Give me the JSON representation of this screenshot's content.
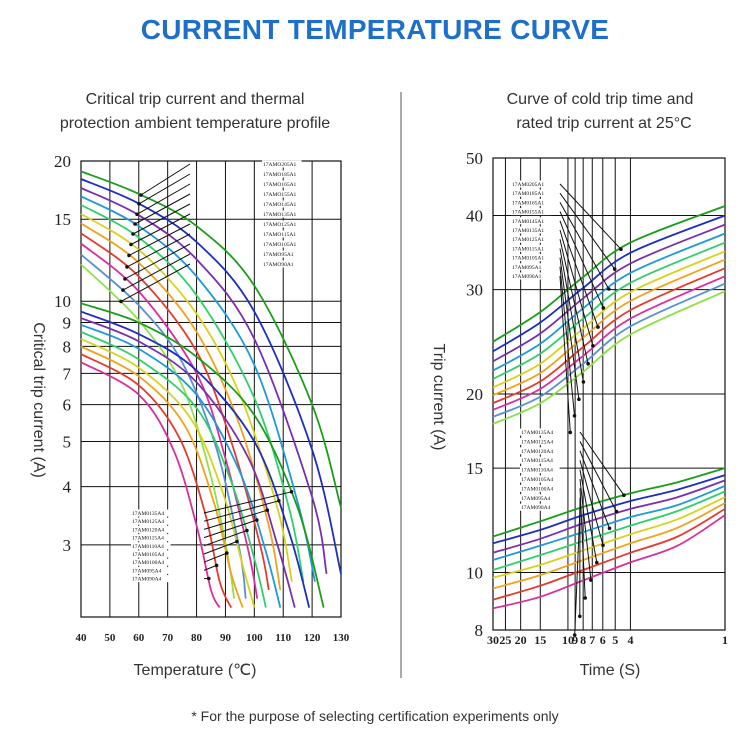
{
  "title": "CURRENT TEMPERATURE CURVE",
  "footnote": "* For the purpose of selecting certification experiments only",
  "colors": {
    "title": "#1e6fc9",
    "series": [
      "#1a9e1a",
      "#1d2ec4",
      "#7a2fb0",
      "#1f9ad6",
      "#2fcf6b",
      "#d8d21a",
      "#f0a21b",
      "#e63a2e",
      "#d92f9b",
      "#5a8fd6",
      "#8fe04a"
    ]
  },
  "chart_data": [
    {
      "type": "line",
      "title": "Critical trip current and thermal protection ambient temperature profile",
      "title_lines": [
        "Critical trip current and thermal",
        "protection ambient temperature profile"
      ],
      "xlabel": "Temperature (℃)",
      "ylabel": "Critical trip current (A)",
      "xscale": "linear",
      "yscale": "log",
      "xlim": [
        40,
        130
      ],
      "ylim": [
        2.1,
        20
      ],
      "x_ticks": [
        "40",
        "50",
        "60",
        "70",
        "80",
        "90",
        "100",
        "110",
        "120",
        "130"
      ],
      "y_ticks": [
        "3",
        "4",
        "5",
        "6",
        "7",
        "8",
        "9",
        "10",
        "15",
        "20"
      ],
      "grid": true,
      "upper_legend": [
        "17AMO205A1",
        "17AMO185A1",
        "17AMO165A1",
        "17AMO155A1",
        "17AMO145A1",
        "17AMO135A1",
        "17AMO125A1",
        "17AMO115A1",
        "17AMO105A1",
        "17AMO95A1",
        "17AMO90A1"
      ],
      "lower_legend": [
        "17AM0135A4",
        "17AM0125A4",
        "17AM0120A4",
        "17AM0115A4",
        "17AM0110A4",
        "17AM0105A4",
        "17AM0100A4",
        "17AM095A4",
        "17AM090A4"
      ],
      "upper_series": [
        {
          "name": "17AMO205A1",
          "x": [
            40,
            60,
            80,
            100,
            120,
            130
          ],
          "y": [
            19.0,
            17.0,
            14.5,
            10.8,
            6.0,
            3.6
          ]
        },
        {
          "name": "17AMO185A1",
          "x": [
            40,
            60,
            80,
            100,
            120,
            130
          ],
          "y": [
            18.3,
            16.2,
            13.4,
            9.5,
            4.8,
            2.6
          ]
        },
        {
          "name": "17AMO165A1",
          "x": [
            40,
            60,
            80,
            100,
            120,
            125
          ],
          "y": [
            17.5,
            15.3,
            12.3,
            8.3,
            3.8,
            2.6
          ]
        },
        {
          "name": "17AMO155A1",
          "x": [
            40,
            60,
            80,
            100,
            115,
            121
          ],
          "y": [
            16.8,
            14.5,
            11.3,
            7.3,
            3.7,
            2.5
          ]
        },
        {
          "name": "17AMO145A1",
          "x": [
            40,
            60,
            80,
            100,
            112,
            117
          ],
          "y": [
            16.1,
            13.7,
            10.3,
            6.2,
            3.6,
            2.5
          ]
        },
        {
          "name": "17AMO135A1",
          "x": [
            40,
            60,
            80,
            95,
            108,
            113
          ],
          "y": [
            15.4,
            12.9,
            9.4,
            6.3,
            3.6,
            2.5
          ]
        },
        {
          "name": "17AMO125A1",
          "x": [
            40,
            60,
            80,
            95,
            105,
            109
          ],
          "y": [
            14.7,
            12.1,
            8.6,
            5.4,
            3.3,
            2.4
          ]
        },
        {
          "name": "17AMO115A1",
          "x": [
            40,
            60,
            80,
            92,
            102,
            105
          ],
          "y": [
            14.0,
            11.3,
            7.8,
            5.0,
            3.0,
            2.4
          ]
        },
        {
          "name": "17AMO105A1",
          "x": [
            40,
            60,
            80,
            90,
            98,
            101
          ],
          "y": [
            13.3,
            10.5,
            7.0,
            4.6,
            2.9,
            2.3
          ]
        },
        {
          "name": "17AMO95A1",
          "x": [
            40,
            60,
            75,
            87,
            95,
            97
          ],
          "y": [
            12.6,
            9.8,
            7.4,
            4.8,
            2.9,
            2.3
          ]
        },
        {
          "name": "17AMO90A1",
          "x": [
            40,
            60,
            75,
            85,
            91,
            93
          ],
          "y": [
            12.0,
            9.1,
            6.6,
            4.2,
            2.8,
            2.3
          ]
        }
      ],
      "lower_series": [
        {
          "name": "17AM0135A4",
          "x": [
            40,
            60,
            80,
            100,
            115,
            124
          ],
          "y": [
            9.9,
            9.0,
            7.6,
            5.7,
            3.6,
            2.2
          ]
        },
        {
          "name": "17AM0125A4",
          "x": [
            40,
            60,
            80,
            100,
            112,
            119
          ],
          "y": [
            9.5,
            8.5,
            7.1,
            5.0,
            3.2,
            2.2
          ]
        },
        {
          "name": "17AM0120A4",
          "x": [
            40,
            60,
            80,
            98,
            108,
            114
          ],
          "y": [
            9.2,
            8.2,
            6.7,
            4.6,
            3.0,
            2.2
          ]
        },
        {
          "name": "17AM0115A4",
          "x": [
            40,
            60,
            80,
            95,
            104,
            109
          ],
          "y": [
            8.9,
            7.9,
            6.3,
            4.3,
            2.9,
            2.2
          ]
        },
        {
          "name": "17AM0110A4",
          "x": [
            40,
            60,
            80,
            92,
            100,
            104
          ],
          "y": [
            8.6,
            7.5,
            5.9,
            4.1,
            2.8,
            2.2
          ]
        },
        {
          "name": "17AM0105A4",
          "x": [
            40,
            60,
            78,
            89,
            96,
            100
          ],
          "y": [
            8.3,
            7.2,
            5.6,
            3.9,
            2.7,
            2.2
          ]
        },
        {
          "name": "17AM0100A4",
          "x": [
            40,
            60,
            76,
            86,
            92,
            96
          ],
          "y": [
            8.0,
            6.9,
            5.4,
            3.7,
            2.6,
            2.2
          ]
        },
        {
          "name": "17AM095A4",
          "x": [
            40,
            60,
            74,
            83,
            88,
            92
          ],
          "y": [
            7.7,
            6.6,
            5.1,
            3.5,
            2.5,
            2.2
          ]
        },
        {
          "name": "17AM090A4",
          "x": [
            40,
            60,
            72,
            80,
            85,
            88
          ],
          "y": [
            7.4,
            6.3,
            4.8,
            3.3,
            2.4,
            2.2
          ]
        }
      ]
    },
    {
      "type": "line",
      "title": "Curve of cold trip time and rated trip current at 25°C",
      "title_lines": [
        "Curve of cold trip time and",
        "rated trip current at 25°C"
      ],
      "xlabel": "Time (S)",
      "ylabel": "Trip current (A)",
      "xscale": "log-reversed",
      "yscale": "log",
      "xlim": [
        30,
        1
      ],
      "ylim": [
        8,
        50
      ],
      "x_ticks": [
        "30",
        "25",
        "20",
        "15",
        "10",
        "9",
        "8",
        "7",
        "6",
        "5",
        "4",
        "1"
      ],
      "y_ticks": [
        "8",
        "10",
        "15",
        "20",
        "30",
        "40",
        "50"
      ],
      "grid": true,
      "upper_legend": [
        "17AM0205A1",
        "17AM0185A1",
        "17AM0165A1",
        "17AM0155A1",
        "17AM0145A1",
        "17AM0135A1",
        "17AM0125A1",
        "17AM0115A1",
        "17AM0105A1",
        "17AM095A1",
        "17AM090A1"
      ],
      "lower_legend": [
        "17AM0135A4",
        "17AM0125A4",
        "17AM0120A4",
        "17AM0115A4",
        "17AM0110A4",
        "17AM0105A4",
        "17AM0100A4",
        "17AM095A4",
        "17AM090A4"
      ],
      "upper_series": [
        {
          "name": "17AM0205A1",
          "x": [
            30,
            15,
            8,
            4,
            1
          ],
          "y": [
            24.5,
            27.5,
            31.5,
            36.0,
            41.5
          ]
        },
        {
          "name": "17AM0185A1",
          "x": [
            30,
            15,
            8,
            4,
            1
          ],
          "y": [
            23.6,
            26.4,
            30.2,
            34.6,
            40.0
          ]
        },
        {
          "name": "17AM0165A1",
          "x": [
            30,
            15,
            8,
            4,
            1
          ],
          "y": [
            22.7,
            25.3,
            29.0,
            33.2,
            38.6
          ]
        },
        {
          "name": "17AM0155A1",
          "x": [
            30,
            15,
            8,
            4,
            1
          ],
          "y": [
            21.9,
            24.3,
            27.9,
            32.0,
            37.3
          ]
        },
        {
          "name": "17AM0145A1",
          "x": [
            30,
            15,
            8,
            4,
            1
          ],
          "y": [
            21.2,
            23.4,
            26.8,
            30.8,
            36.0
          ]
        },
        {
          "name": "17AM0135A1",
          "x": [
            30,
            15,
            8,
            4,
            1
          ],
          "y": [
            20.5,
            22.5,
            25.8,
            29.7,
            34.8
          ]
        },
        {
          "name": "17AM0125A1",
          "x": [
            30,
            15,
            8,
            4,
            1
          ],
          "y": [
            19.9,
            21.7,
            24.9,
            28.7,
            33.7
          ]
        },
        {
          "name": "17AM0115A1",
          "x": [
            30,
            15,
            8,
            4,
            1
          ],
          "y": [
            19.3,
            21.0,
            24.0,
            27.7,
            32.6
          ]
        },
        {
          "name": "17AM0105A1",
          "x": [
            30,
            15,
            8,
            4,
            1
          ],
          "y": [
            18.8,
            20.4,
            23.2,
            26.8,
            31.6
          ]
        },
        {
          "name": "17AM095A1",
          "x": [
            30,
            15,
            8,
            4,
            1
          ],
          "y": [
            18.3,
            19.8,
            22.5,
            26.0,
            30.7
          ]
        },
        {
          "name": "17AM090A1",
          "x": [
            30,
            15,
            8,
            4,
            1
          ],
          "y": [
            17.8,
            19.3,
            21.8,
            25.2,
            29.8
          ]
        }
      ],
      "lower_series": [
        {
          "name": "17AM0135A4",
          "x": [
            30,
            15,
            8,
            4,
            2,
            1
          ],
          "y": [
            11.5,
            12.2,
            12.9,
            13.6,
            14.2,
            15.0
          ]
        },
        {
          "name": "17AM0125A4",
          "x": [
            30,
            15,
            8,
            4,
            2,
            1
          ],
          "y": [
            11.2,
            11.8,
            12.5,
            13.2,
            13.8,
            14.6
          ]
        },
        {
          "name": "17AM0120A4",
          "x": [
            30,
            15,
            8,
            4,
            2,
            1
          ],
          "y": [
            10.8,
            11.4,
            12.1,
            12.8,
            13.4,
            14.3
          ]
        },
        {
          "name": "17AM0115A4",
          "x": [
            30,
            15,
            8,
            4,
            2,
            1
          ],
          "y": [
            10.5,
            11.1,
            11.7,
            12.4,
            13.0,
            14.0
          ]
        },
        {
          "name": "17AM0110A4",
          "x": [
            30,
            15,
            8,
            4,
            2,
            1
          ],
          "y": [
            10.1,
            10.7,
            11.3,
            12.0,
            12.7,
            13.7
          ]
        },
        {
          "name": "17AM0105A4",
          "x": [
            30,
            15,
            8,
            4,
            2,
            1
          ],
          "y": [
            9.8,
            10.3,
            10.9,
            11.6,
            12.3,
            13.4
          ]
        },
        {
          "name": "17AM0100A4",
          "x": [
            30,
            15,
            8,
            4,
            2,
            1
          ],
          "y": [
            9.4,
            9.9,
            10.5,
            11.2,
            11.9,
            13.1
          ]
        },
        {
          "name": "17AM095A4",
          "x": [
            30,
            15,
            8,
            4,
            2,
            1
          ],
          "y": [
            9.0,
            9.5,
            10.1,
            10.8,
            11.5,
            12.8
          ]
        },
        {
          "name": "17AM090A4",
          "x": [
            30,
            15,
            8,
            4,
            2,
            1
          ],
          "y": [
            8.7,
            9.1,
            9.7,
            10.4,
            11.1,
            12.5
          ]
        }
      ]
    }
  ]
}
